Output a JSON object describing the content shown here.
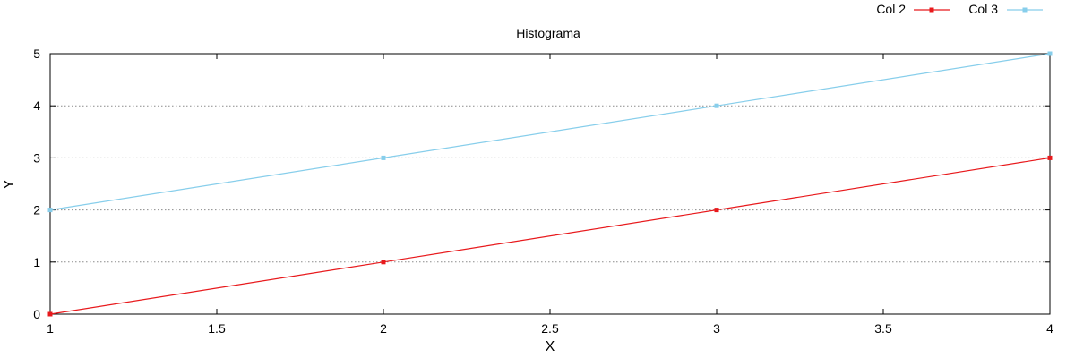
{
  "chart_data": {
    "type": "line",
    "title": "Histograma",
    "xlabel": "X",
    "ylabel": "Y",
    "x": [
      1,
      2,
      3,
      4
    ],
    "xlim": [
      1,
      4
    ],
    "ylim": [
      0,
      5
    ],
    "xticks": [
      1,
      1.5,
      2,
      2.5,
      3,
      3.5,
      4
    ],
    "xtick_labels": [
      "1",
      "1.5",
      "2",
      "2.5",
      "3",
      "3.5",
      "4"
    ],
    "yticks": [
      0,
      1,
      2,
      3,
      4,
      5
    ],
    "ytick_labels": [
      "0",
      "1",
      "2",
      "3",
      "4",
      "5"
    ],
    "grid": "horizontal-dotted",
    "legend_position": "top-right",
    "series": [
      {
        "name": "Col 2",
        "color": "#e8191c",
        "values": [
          0,
          1,
          2,
          3
        ]
      },
      {
        "name": "Col 3",
        "color": "#87ceeb",
        "values": [
          2,
          3,
          4,
          5
        ]
      }
    ]
  }
}
